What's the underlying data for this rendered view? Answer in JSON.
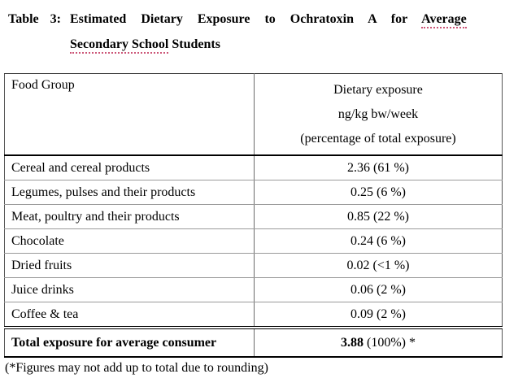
{
  "title": {
    "label": "Table 3:",
    "line1_text": "Estimated Dietary Exposure to Ochratoxin A for",
    "line1_marked": "Average",
    "line2_marked": "Secondary School",
    "line2_text": "Students"
  },
  "table": {
    "header": {
      "col1": "Food Group",
      "col2_line1": "Dietary exposure",
      "col2_line2": "ng/kg bw/week",
      "col2_line3": "(percentage of total exposure)"
    },
    "rows": [
      {
        "food": "Cereal and cereal products",
        "exposure": "2.36 (61 %)"
      },
      {
        "food": "Legumes, pulses and their products",
        "exposure": "0.25 (6 %)"
      },
      {
        "food": "Meat, poultry and their products",
        "exposure": "0.85 (22 %)"
      },
      {
        "food": "Chocolate",
        "exposure": "0.24 (6 %)"
      },
      {
        "food": "Dried fruits",
        "exposure": "0.02 (<1 %)"
      },
      {
        "food": "Juice drinks",
        "exposure": "0.06 (2 %)"
      },
      {
        "food": "Coffee & tea",
        "exposure": "0.09 (2 %)"
      }
    ],
    "total": {
      "label": "Total exposure for average consumer",
      "value": "3.88",
      "suffix": "(100%) *"
    }
  },
  "footnote": "(*Figures may not add up to total due to rounding)"
}
